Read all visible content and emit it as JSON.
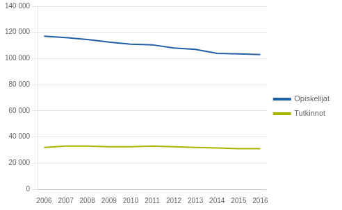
{
  "chart_data": {
    "type": "line",
    "x": [
      2006,
      2007,
      2008,
      2009,
      2010,
      2011,
      2012,
      2013,
      2014,
      2015,
      2016
    ],
    "series": [
      {
        "name": "Opiskelijat",
        "color": "#1F5FA6",
        "values": [
          117000,
          116000,
          114500,
          112500,
          111000,
          110500,
          108000,
          107000,
          104000,
          103500,
          103000
        ]
      },
      {
        "name": "Tutkinnot",
        "color": "#A8B400",
        "values": [
          32000,
          33000,
          33000,
          32500,
          32500,
          33000,
          32500,
          32000,
          31500,
          31000,
          31000
        ]
      }
    ],
    "xlim": [
      2005.7,
      2016.3
    ],
    "xticks": [
      2006,
      2007,
      2008,
      2009,
      2010,
      2011,
      2012,
      2013,
      2014,
      2015,
      2016
    ],
    "ylim": [
      0,
      140000
    ],
    "yticks": [
      0,
      {
        "value": 20000,
        "label": "20 000"
      },
      {
        "value": 40000,
        "label": "40 000"
      },
      {
        "value": 60000,
        "label": "60 000"
      },
      {
        "value": 80000,
        "label": "80 000"
      },
      {
        "value": 100000,
        "label": "100 000"
      },
      {
        "value": 120000,
        "label": "120 000"
      },
      {
        "value": 140000,
        "label": "140 000"
      }
    ],
    "grid": "y",
    "legend": "right"
  }
}
